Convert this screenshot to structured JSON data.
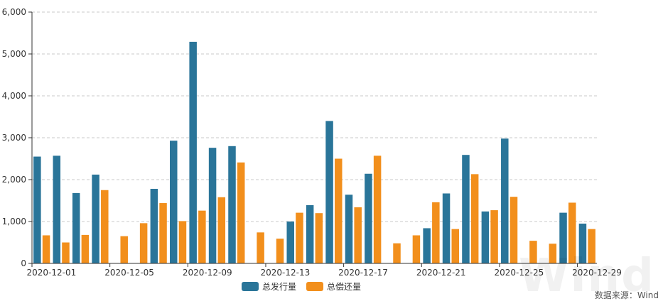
{
  "chart_data": {
    "type": "bar",
    "categories": [
      "2020-12-01",
      "2020-12-02",
      "2020-12-03",
      "2020-12-04",
      "2020-12-05",
      "2020-12-06",
      "2020-12-07",
      "2020-12-08",
      "2020-12-09",
      "2020-12-10",
      "2020-12-11",
      "2020-12-12",
      "2020-12-13",
      "2020-12-14",
      "2020-12-15",
      "2020-12-16",
      "2020-12-17",
      "2020-12-18",
      "2020-12-19",
      "2020-12-20",
      "2020-12-21",
      "2020-12-22",
      "2020-12-23",
      "2020-12-24",
      "2020-12-25",
      "2020-12-26",
      "2020-12-27",
      "2020-12-28",
      "2020-12-29"
    ],
    "tick_labels": [
      "2020-12-01",
      "2020-12-05",
      "2020-12-09",
      "2020-12-13",
      "2020-12-17",
      "2020-12-21",
      "2020-12-25",
      "2020-12-29"
    ],
    "series": [
      {
        "name": "总发行量",
        "color": "#2a7599",
        "values": [
          2550,
          2570,
          1680,
          2120,
          0,
          0,
          1780,
          2930,
          5290,
          2760,
          2800,
          0,
          0,
          1000,
          1390,
          3400,
          1640,
          2140,
          0,
          0,
          840,
          1670,
          2590,
          1240,
          2980,
          0,
          0,
          1210,
          950
        ]
      },
      {
        "name": "总偿还量",
        "color": "#f28f1c",
        "values": [
          670,
          500,
          680,
          1750,
          650,
          960,
          1440,
          1010,
          1260,
          1580,
          2410,
          740,
          590,
          1210,
          1200,
          2500,
          1340,
          2570,
          480,
          670,
          1460,
          820,
          2130,
          1270,
          1590,
          540,
          470,
          1450,
          820
        ]
      }
    ],
    "yticks": [
      "0",
      "1,000",
      "2,000",
      "3,000",
      "4,000",
      "5,000",
      "6,000"
    ],
    "ylim": [
      0,
      6000
    ],
    "grid": true,
    "legend_position": "bottom-center",
    "title": "",
    "xlabel": "",
    "ylabel": ""
  },
  "footer": {
    "source": "数据来源：Wind",
    "watermark": "Wind"
  }
}
